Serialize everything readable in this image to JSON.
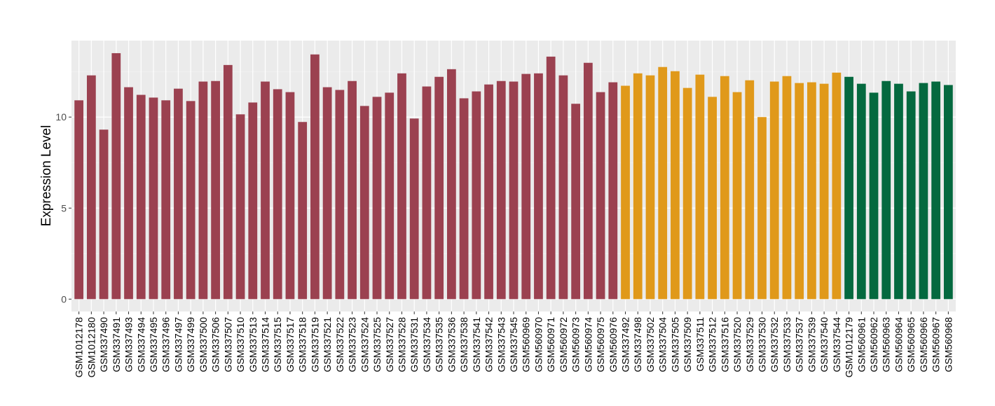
{
  "chart_data": {
    "type": "bar",
    "ylabel": "Expression Level",
    "xlabel": "",
    "ylim": [
      -0.68,
      14.2
    ],
    "yticks": [
      0,
      5,
      10
    ],
    "grid": true,
    "legend": "none",
    "group_colors": {
      "group1": "#9b4150",
      "group2": "#e0991a",
      "group3": "#04693f"
    },
    "categories": [
      "GSM1012178",
      "GSM1012180",
      "GSM337490",
      "GSM337491",
      "GSM337493",
      "GSM337494",
      "GSM337495",
      "GSM337496",
      "GSM337497",
      "GSM337499",
      "GSM337500",
      "GSM337506",
      "GSM337507",
      "GSM337510",
      "GSM337513",
      "GSM337514",
      "GSM337515",
      "GSM337517",
      "GSM337518",
      "GSM337519",
      "GSM337521",
      "GSM337522",
      "GSM337523",
      "GSM337524",
      "GSM337525",
      "GSM337527",
      "GSM337528",
      "GSM337531",
      "GSM337534",
      "GSM337535",
      "GSM337536",
      "GSM337538",
      "GSM337541",
      "GSM337542",
      "GSM337543",
      "GSM337545",
      "GSM560969",
      "GSM560970",
      "GSM560971",
      "GSM560972",
      "GSM560973",
      "GSM560974",
      "GSM560975",
      "GSM560976",
      "GSM337492",
      "GSM337498",
      "GSM337502",
      "GSM337504",
      "GSM337505",
      "GSM337509",
      "GSM337511",
      "GSM337512",
      "GSM337516",
      "GSM337520",
      "GSM337529",
      "GSM337530",
      "GSM337532",
      "GSM337533",
      "GSM337537",
      "GSM337539",
      "GSM337540",
      "GSM337544",
      "GSM1012179",
      "GSM560961",
      "GSM560962",
      "GSM560963",
      "GSM560964",
      "GSM560965",
      "GSM560966",
      "GSM560967",
      "GSM560968"
    ],
    "values": [
      10.92,
      12.29,
      9.31,
      13.51,
      11.64,
      11.22,
      11.07,
      10.92,
      11.56,
      10.88,
      11.95,
      11.98,
      12.86,
      10.15,
      10.8,
      11.95,
      11.53,
      11.37,
      9.73,
      13.44,
      11.64,
      11.49,
      11.98,
      10.61,
      11.11,
      11.34,
      12.4,
      9.92,
      11.68,
      12.21,
      12.63,
      11.03,
      11.41,
      11.79,
      11.98,
      11.95,
      12.37,
      12.4,
      13.32,
      12.29,
      10.73,
      12.98,
      11.37,
      11.91,
      11.72,
      12.4,
      12.29,
      12.75,
      12.52,
      11.6,
      12.33,
      11.11,
      12.25,
      11.37,
      12.02,
      10.0,
      11.95,
      12.25,
      11.87,
      11.91,
      11.83,
      12.44,
      12.21,
      11.83,
      11.34,
      11.98,
      11.83,
      11.41,
      11.87,
      11.95,
      11.76
    ],
    "groups": [
      "group1",
      "group1",
      "group1",
      "group1",
      "group1",
      "group1",
      "group1",
      "group1",
      "group1",
      "group1",
      "group1",
      "group1",
      "group1",
      "group1",
      "group1",
      "group1",
      "group1",
      "group1",
      "group1",
      "group1",
      "group1",
      "group1",
      "group1",
      "group1",
      "group1",
      "group1",
      "group1",
      "group1",
      "group1",
      "group1",
      "group1",
      "group1",
      "group1",
      "group1",
      "group1",
      "group1",
      "group1",
      "group1",
      "group1",
      "group1",
      "group1",
      "group1",
      "group1",
      "group1",
      "group2",
      "group2",
      "group2",
      "group2",
      "group2",
      "group2",
      "group2",
      "group2",
      "group2",
      "group2",
      "group2",
      "group2",
      "group2",
      "group2",
      "group2",
      "group2",
      "group2",
      "group2",
      "group3",
      "group3",
      "group3",
      "group3",
      "group3",
      "group3",
      "group3",
      "group3",
      "group3"
    ]
  }
}
